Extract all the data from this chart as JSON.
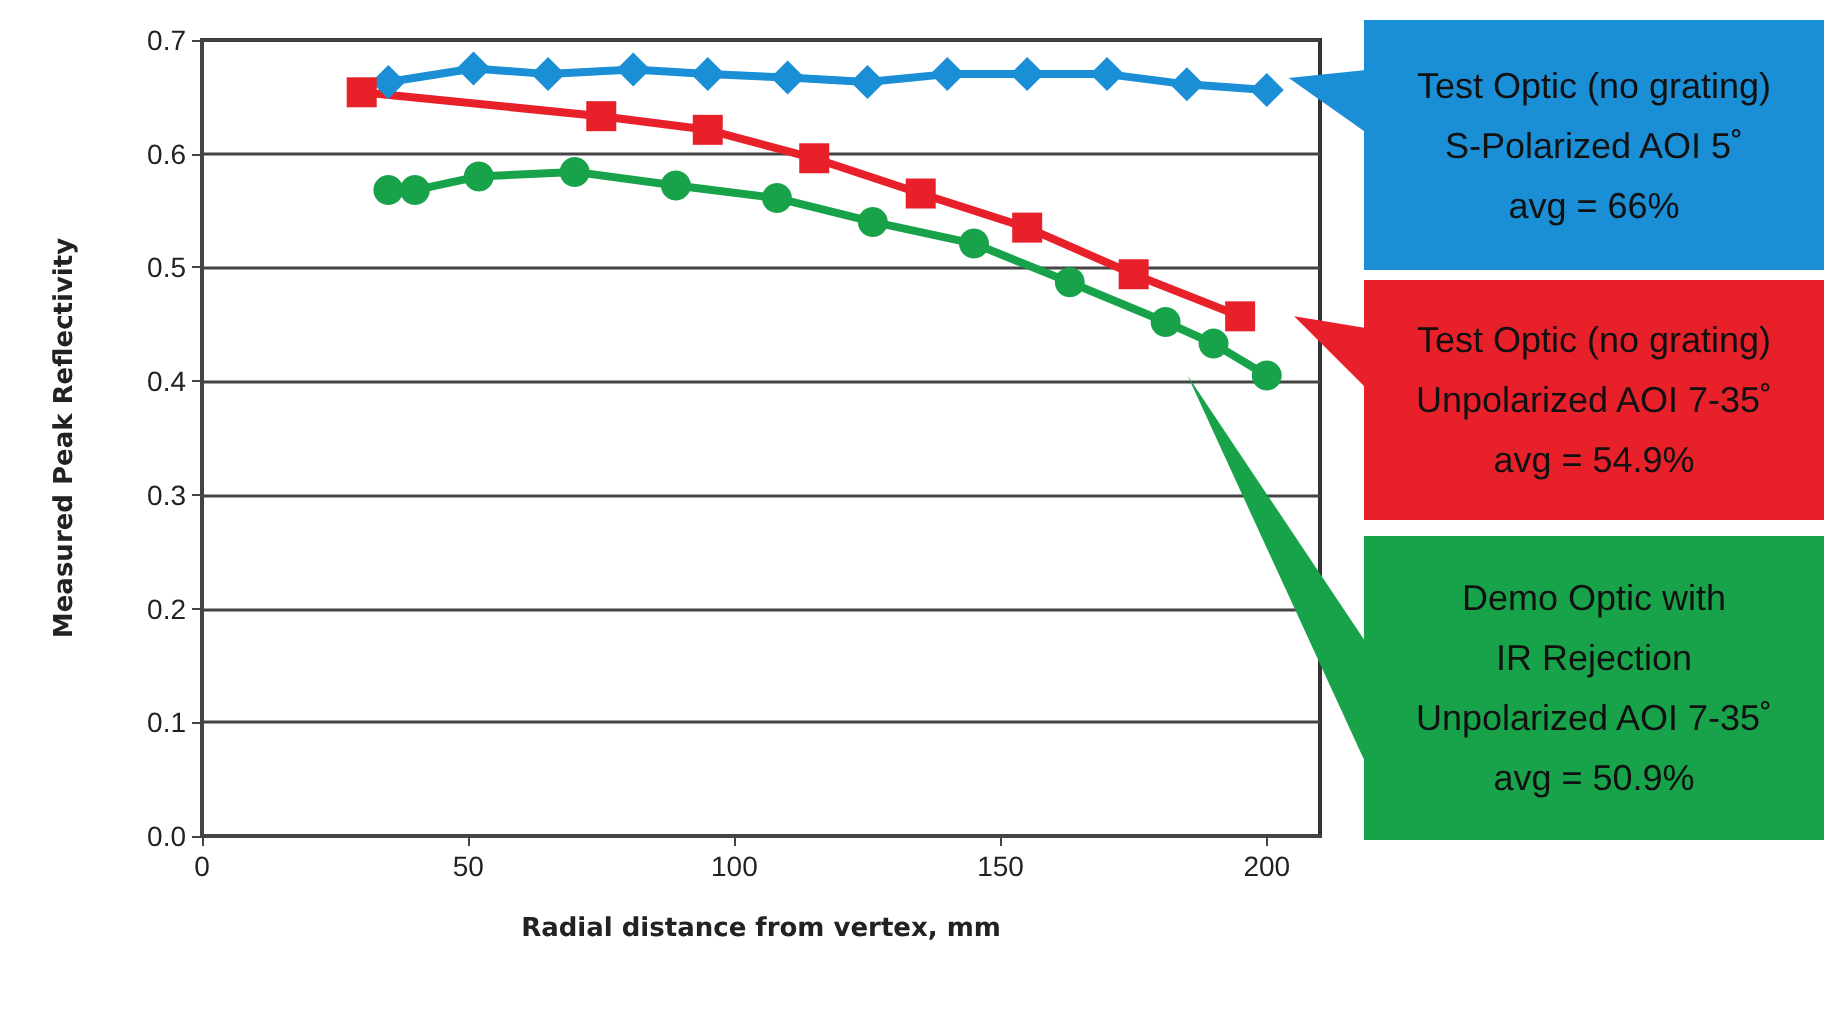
{
  "chart_data": {
    "type": "line",
    "xlabel": "Radial distance from vertex, mm",
    "ylabel": "Measured Peak Reflectivity",
    "xlim": [
      0,
      210
    ],
    "xticks": [
      0,
      50,
      100,
      150,
      200
    ],
    "ylim": [
      0,
      0.7
    ],
    "yticks": [
      {
        "value": 0,
        "label": "0.0"
      },
      0.1,
      0.2,
      0.3,
      0.4,
      0.5,
      0.6,
      0.7
    ],
    "grid": "y",
    "series": [
      {
        "color": "#1a8fd6",
        "marker": "diamond",
        "x": [
          35,
          51,
          65,
          81,
          95,
          110,
          125,
          140,
          155,
          170,
          185,
          200
        ],
        "values": [
          0.663,
          0.675,
          0.67,
          0.674,
          0.67,
          0.667,
          0.663,
          0.67,
          0.67,
          0.67,
          0.661,
          0.656
        ]
      },
      {
        "color": "#e8202a",
        "marker": "square",
        "x": [
          30,
          75,
          95,
          115,
          135,
          155,
          175,
          195
        ],
        "values": [
          0.654,
          0.633,
          0.621,
          0.596,
          0.565,
          0.535,
          0.494,
          0.457
        ]
      },
      {
        "color": "#18a24a",
        "marker": "circle",
        "x": [
          35,
          40,
          52,
          70,
          89,
          108,
          126,
          145,
          163,
          181,
          190,
          200
        ],
        "values": [
          0.568,
          0.568,
          0.58,
          0.584,
          0.572,
          0.561,
          0.54,
          0.521,
          0.487,
          0.452,
          0.433,
          0.405
        ]
      }
    ],
    "annotations": [
      "Test Optic (no grating)\nS-Polarized AOI 5˚\navg = 66%",
      "Test Optic (no grating)\nUnpolarized AOI 7-35˚\navg = 54.9%",
      "Demo Optic with\nIR Rejection\nUnpolarized AOI 7-35˚\navg = 50.9%"
    ]
  }
}
